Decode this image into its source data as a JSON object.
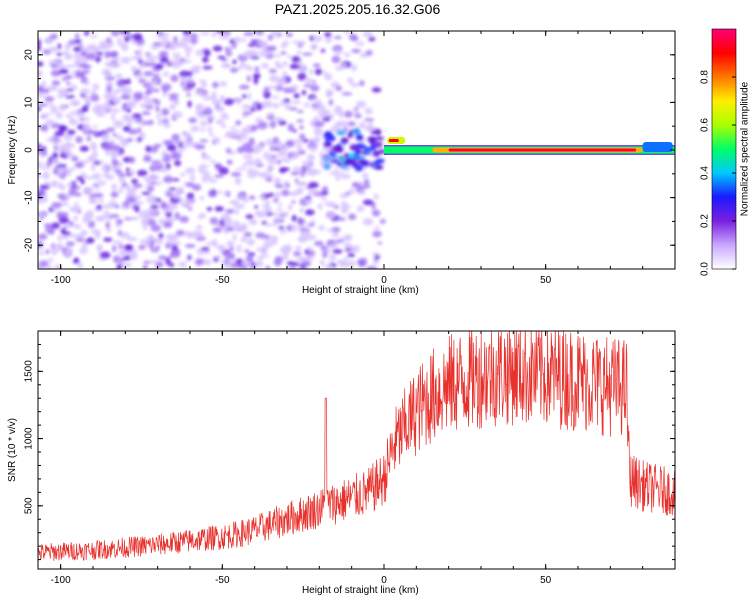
{
  "title": "PAZ1.2025.205.16.32.G06",
  "chart_data": [
    {
      "type": "heatmap",
      "xlabel": "Height of straight line (km)",
      "ylabel": "Frequency (Hz)",
      "xlim": [
        -107,
        90
      ],
      "ylim": [
        -25,
        25
      ],
      "xticks": [
        -100,
        -50,
        0,
        50
      ],
      "yticks": [
        -20,
        -10,
        0,
        10,
        20
      ],
      "colorbar": {
        "label": "Normalized spectral amplitude",
        "range": [
          0,
          1
        ],
        "ticks": [
          "0.0",
          "0.2",
          "0.4",
          "0.6",
          "0.8"
        ],
        "colors": [
          "#ffffff",
          "#c9a8ff",
          "#7a1fe0",
          "#1a1aff",
          "#00c8ff",
          "#00ff66",
          "#aaff00",
          "#ffee00",
          "#ff7700",
          "#ff0000",
          "#ff0077"
        ]
      },
      "features": [
        {
          "region": "noise",
          "x_range": [
            -107,
            0
          ],
          "f_range": [
            -25,
            25
          ],
          "amplitude": 0.08
        },
        {
          "region": "transition",
          "x_range": [
            -18,
            0
          ],
          "f_range": [
            -5,
            5
          ],
          "amplitude": 0.2
        },
        {
          "region": "carrier",
          "x_range": [
            0,
            90
          ],
          "frequency": 0,
          "amplitude": 0.95
        }
      ]
    },
    {
      "type": "line",
      "xlabel": "Height of straight line (km)",
      "ylabel": "SNR (10 * v/v)",
      "xlim": [
        -107,
        90
      ],
      "ylim": [
        30,
        1800
      ],
      "xticks": [
        -100,
        -50,
        0,
        50
      ],
      "yticks": [
        500,
        1000,
        1500
      ],
      "series": [
        {
          "color": "#e8302c",
          "x": [
            -107,
            -100,
            -90,
            -80,
            -70,
            -60,
            -50,
            -45,
            -40,
            -35,
            -30,
            -25,
            -20,
            -18,
            -15,
            -10,
            -5,
            0,
            3,
            7,
            10,
            15,
            20,
            30,
            40,
            50,
            60,
            70,
            75,
            76,
            80,
            85,
            90
          ],
          "y": [
            150,
            160,
            170,
            190,
            210,
            240,
            270,
            290,
            320,
            360,
            400,
            440,
            480,
            500,
            520,
            560,
            600,
            700,
            950,
            1100,
            1200,
            1320,
            1400,
            1470,
            1500,
            1480,
            1440,
            1390,
            1380,
            700,
            650,
            620,
            600
          ]
        }
      ]
    }
  ]
}
